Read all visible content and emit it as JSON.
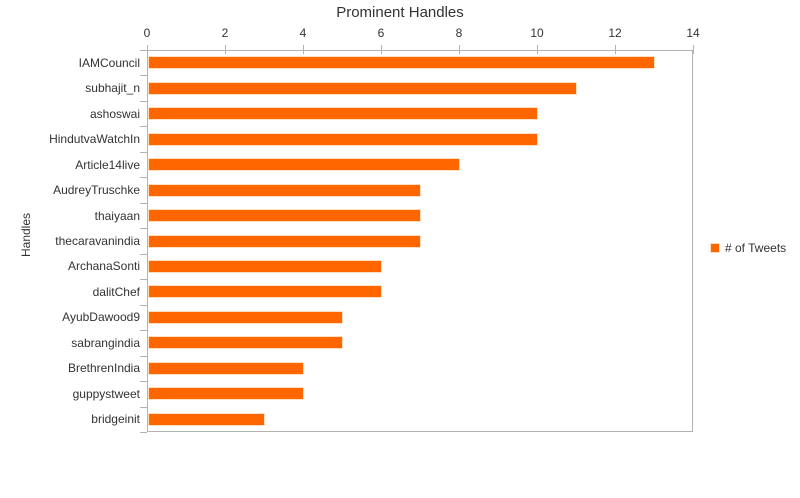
{
  "title": "Prominent Handles",
  "chart_data": {
    "type": "bar",
    "orientation": "horizontal",
    "title": "Prominent Handles",
    "ylabel": "Handles",
    "xlabel": "",
    "categories": [
      "IAMCouncil",
      "subhajit_n",
      "ashoswai",
      "HindutvaWatchIn",
      "Article14live",
      "AudreyTruschke",
      "thaiyaan",
      "thecaravanindia",
      "ArchanaSonti",
      "dalitChef",
      "AyubDawood9",
      "sabrangindia",
      "BrethrenIndia",
      "guppystweet",
      "bridgeinit"
    ],
    "series": [
      {
        "name": "# of Tweets",
        "values": [
          13,
          11,
          10,
          10,
          8,
          7,
          7,
          7,
          6,
          6,
          5,
          5,
          4,
          4,
          3
        ]
      }
    ],
    "xlim": [
      0,
      14
    ],
    "x_ticks": [
      "0",
      "2",
      "4",
      "6",
      "8",
      "10",
      "12",
      "14"
    ],
    "grid": false,
    "legend_position": "right",
    "colors": {
      "bar": "#ff6600",
      "bar_border": "#ffe0c2",
      "axis": "#b3b3b3",
      "text": "#333333",
      "background": "#ffffff"
    }
  }
}
